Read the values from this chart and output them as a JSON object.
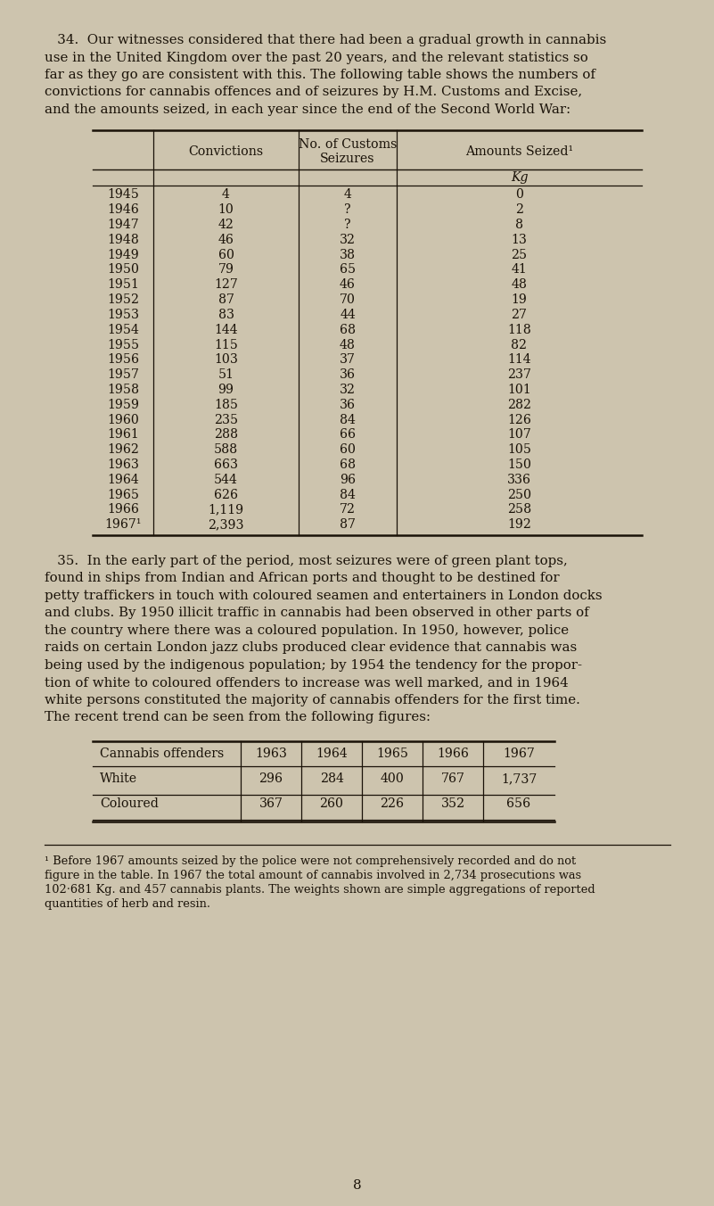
{
  "bg_color": "#cdc4ae",
  "text_color": "#1a1208",
  "para34": "   34.  Our witnesses considered that there had been a gradual growth in cannabis\nuse in the United Kingdom over the past 20 years, and the relevant statistics so\nfar as they go are consistent with this. The following table shows the numbers of\nconvictions for cannabis offences and of seizures by H.M. Customs and Excise,\nand the amounts seized, in each year since the end of the Second World War:",
  "table1_rows": [
    [
      "1945",
      "4",
      "4",
      "0"
    ],
    [
      "1946",
      "10",
      "?",
      "2"
    ],
    [
      "1947",
      "42",
      "?",
      "8"
    ],
    [
      "1948",
      "46",
      "32",
      "13"
    ],
    [
      "1949",
      "60",
      "38",
      "25"
    ],
    [
      "1950",
      "79",
      "65",
      "41"
    ],
    [
      "1951",
      "127",
      "46",
      "48"
    ],
    [
      "1952",
      "87",
      "70",
      "19"
    ],
    [
      "1953",
      "83",
      "44",
      "27"
    ],
    [
      "1954",
      "144",
      "68",
      "118"
    ],
    [
      "1955",
      "115",
      "48",
      "82"
    ],
    [
      "1956",
      "103",
      "37",
      "114"
    ],
    [
      "1957",
      "51",
      "36",
      "237"
    ],
    [
      "1958",
      "99",
      "32",
      "101"
    ],
    [
      "1959",
      "185",
      "36",
      "282"
    ],
    [
      "1960",
      "235",
      "84",
      "126"
    ],
    [
      "1961",
      "288",
      "66",
      "107"
    ],
    [
      "1962",
      "588",
      "60",
      "105"
    ],
    [
      "1963",
      "663",
      "68",
      "150"
    ],
    [
      "1964",
      "544",
      "96",
      "336"
    ],
    [
      "1965",
      "626",
      "84",
      "250"
    ],
    [
      "1966",
      "1,119",
      "72",
      "258"
    ],
    [
      "1967¹",
      "2,393",
      "87",
      "192"
    ]
  ],
  "para35": "   35.  In the early part of the period, most seizures were of green plant tops,\nfound in ships from Indian and African ports and thought to be destined for\npetty traffickers in touch with coloured seamen and entertainers in London docks\nand clubs. By 1950 illicit traffic in cannabis had been observed in other parts of\nthe country where there was a coloured population. In 1950, however, police\nraids on certain London jazz clubs produced clear evidence that cannabis was\nbeing used by the indigenous population; by 1954 the tendency for the propor-\ntion of white to coloured offenders to increase was well marked, and in 1964\nwhite persons constituted the majority of cannabis offenders for the first time.\nThe recent trend can be seen from the following figures:",
  "table2_rows": [
    [
      "White",
      "296",
      "284",
      "400",
      "767",
      "1,737"
    ],
    [
      "Coloured",
      "367",
      "260",
      "226",
      "352",
      "656"
    ]
  ],
  "footnote_lines": [
    "¹ Before 1967 amounts seized by the police were not comprehensively recorded and do not",
    "figure in the table. In 1967 the total amount of cannabis involved in 2,734 prosecutions was",
    "102·681 Kg. and 457 cannabis plants. The weights shown are simple aggregations of reported",
    "quantities of herb and resin."
  ],
  "page_number": "8",
  "fig_width": 8.01,
  "fig_height": 13.52,
  "dpi": 100
}
